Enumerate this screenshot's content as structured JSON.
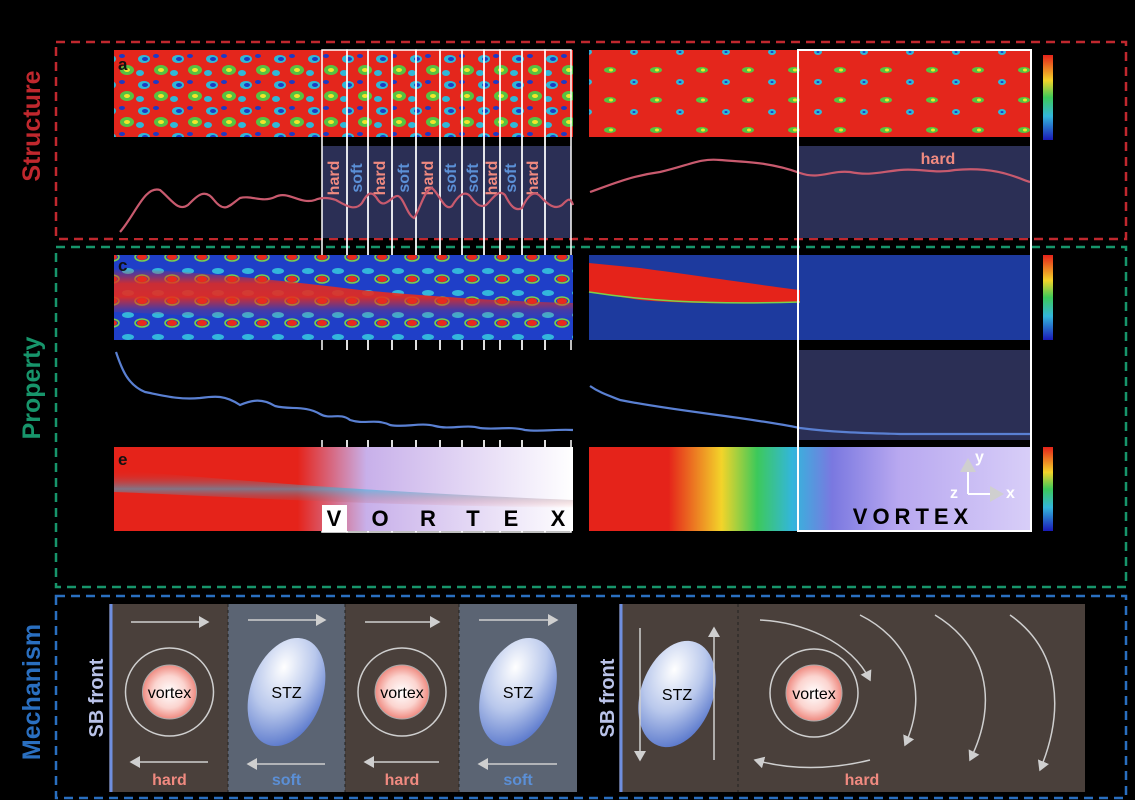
{
  "sections": {
    "structure": "Structure",
    "property": "Property",
    "mechanism": "Mechanism"
  },
  "panel_labels": {
    "a": "a",
    "c": "c",
    "e": "e"
  },
  "zone_labels": [
    "hard",
    "soft",
    "hard",
    "soft",
    "hard",
    "soft",
    "soft",
    "hard",
    "soft",
    "hard"
  ],
  "right_zone_label": "hard",
  "vortex_letters": [
    "V",
    "O",
    "R",
    "T",
    "E",
    "X"
  ],
  "vortex_word": "VORTEX",
  "axes": {
    "y": "y",
    "z": "z",
    "x": "x"
  },
  "mechanism": {
    "sb_front": "SB front",
    "vortex": "vortex",
    "stz": "STZ",
    "left_cells": [
      "hard",
      "soft",
      "hard",
      "soft"
    ],
    "right_label": "hard"
  },
  "colors": {
    "structure": "#c0282e",
    "property": "#17956b",
    "mechanism": "#2a6fc0",
    "hard": "#f08a80",
    "soft": "#5b8fd6",
    "hard_cell": "#4a403b",
    "soft_cell": "#5b6473",
    "curve_structure": "#c85a6e",
    "curve_property": "#5a80d2"
  }
}
